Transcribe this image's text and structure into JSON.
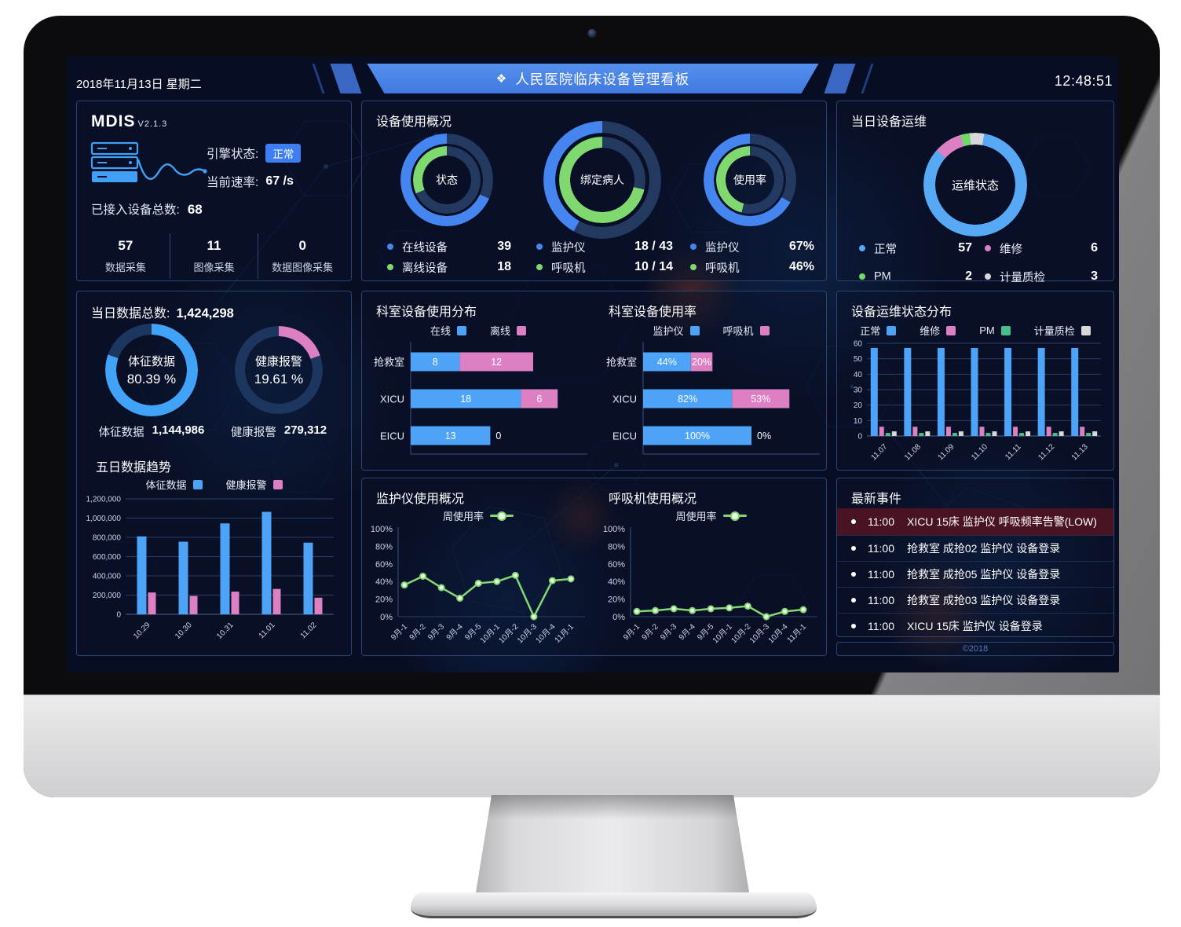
{
  "header": {
    "date": "2018年11月13日 星期二",
    "title_icon": "❖",
    "title": "人民医院临床设备管理看板",
    "time": "12:48:51"
  },
  "colors": {
    "accent_blue": "#4A86E8",
    "bar_blue": "#4DA3F7",
    "donut_blue": "#4585F0",
    "green": "#7FD96E",
    "pink": "#DC7FC3",
    "teal_pm": "#45C08C",
    "white_seg": "#D8D8D8",
    "light_blue": "#41A3F7",
    "ring_rest": "#24395F",
    "navy_rest": "#1D3660",
    "alert_bg": "#4A1322",
    "badge_blue": "#3D7EF2"
  },
  "mdis": {
    "title": "MDIS",
    "version": "V2.1.3",
    "engine_label": "引擎状态:",
    "engine_status": "正常",
    "rate_label": "当前速率:",
    "rate_value": "67 /s",
    "total_label": "已接入设备总数:",
    "total_value": "68",
    "stats": [
      {
        "value": "57",
        "label": "数据采集"
      },
      {
        "value": "11",
        "label": "图像采集"
      },
      {
        "value": "0",
        "label": "数据图像采集"
      }
    ]
  },
  "device_usage": {
    "title": "设备使用概况",
    "groups": [
      {
        "center": "状态",
        "legend": [
          {
            "label": "在线设备",
            "value": "39",
            "color": "#4585F0"
          },
          {
            "label": "离线设备",
            "value": "18",
            "color": "#7FD96E"
          }
        ]
      },
      {
        "center": "绑定病人",
        "legend": [
          {
            "label": "监护仪",
            "value": "18 / 43",
            "color": "#4585F0"
          },
          {
            "label": "呼吸机",
            "value": "10 / 14",
            "color": "#7FD96E"
          }
        ]
      },
      {
        "center": "使用率",
        "legend": [
          {
            "label": "监护仪",
            "value": "67%",
            "color": "#4585F0"
          },
          {
            "label": "呼吸机",
            "value": "46%",
            "color": "#7FD96E"
          }
        ]
      }
    ]
  },
  "daily_maintenance": {
    "title": "当日设备运维",
    "center": "运维状态",
    "legend": [
      {
        "label": "正常",
        "value": "57",
        "color": "#57A8F5"
      },
      {
        "label": "维修",
        "value": "6",
        "color": "#DC7FC3"
      },
      {
        "label": "PM",
        "value": "2",
        "color": "#6FD96A"
      },
      {
        "label": "计量质检",
        "value": "3",
        "color": "#D8D8D8"
      }
    ]
  },
  "daily_data": {
    "title": "当日数据总数:",
    "total": "1,424,298",
    "donuts": [
      {
        "center_line1": "体征数据",
        "center_line2": "80.39 %",
        "label": "体征数据",
        "value": "1,144,986"
      },
      {
        "center_line1": "健康报警",
        "center_line2": "19.61 %",
        "label": "健康报警",
        "value": "279,312"
      }
    ]
  },
  "donuts": {
    "usage1_outer": {
      "size": 118,
      "ring": 13,
      "dir": "ccw",
      "pct": 68.4,
      "color": "#4585F0",
      "rest": "#24395F"
    },
    "usage1_inner": {
      "size": 86,
      "ring": 12,
      "dir": "ccw",
      "pct": 31.6,
      "color": "#7FD96E",
      "rest": "#24395F"
    },
    "usage2_outer": {
      "size": 150,
      "ring": 15,
      "dir": "ccw",
      "pct": 41.9,
      "color": "#4585F0",
      "rest": "#24395F"
    },
    "usage2_inner": {
      "size": 110,
      "ring": 14,
      "dir": "ccw",
      "pct": 71.4,
      "color": "#7FD96E",
      "rest": "#24395F"
    },
    "usage3_outer": {
      "size": 118,
      "ring": 13,
      "dir": "ccw",
      "pct": 67,
      "color": "#4585F0",
      "rest": "#24395F"
    },
    "usage3_inner": {
      "size": 86,
      "ring": 12,
      "dir": "ccw",
      "pct": 46,
      "color": "#7FD96E",
      "rest": "#24395F"
    },
    "maintenance": {
      "size": 132,
      "ring": 15,
      "dir": "cw",
      "from": 10,
      "segs": [
        [
          "#57A8F5",
          83.8
        ],
        [
          "#DC7FC3",
          8.8
        ],
        [
          "#6FD96A",
          2.9
        ],
        [
          "#D8D8D8",
          4.5
        ]
      ]
    },
    "vital": {
      "size": 118,
      "ring": 14,
      "dir": "cw",
      "pct": 80.39,
      "color": "#41A3F7",
      "rest": "#1D3660"
    },
    "alarm": {
      "size": 112,
      "ring": 13,
      "dir": "cw",
      "pct": 19.61,
      "color": "#DC7FC3",
      "rest": "#1D3660"
    }
  },
  "chart_data": {
    "five_day_trend": {
      "type": "bar",
      "title": "五日数据趋势",
      "categories": [
        "10.29",
        "10.30",
        "10.31",
        "11.01",
        "11.02"
      ],
      "series": [
        {
          "name": "体征数据",
          "color": "#4DA3F7",
          "values": [
            810000,
            755000,
            945000,
            1065000,
            745000
          ]
        },
        {
          "name": "健康报警",
          "color": "#DC7FC3",
          "values": [
            227000,
            191000,
            236000,
            264000,
            173000
          ]
        }
      ],
      "ylim": [
        0,
        1200000
      ],
      "y_ticks": [
        "0",
        "200,000",
        "400,000",
        "600,000",
        "800,000",
        "1,000,000",
        "1,200,000"
      ],
      "grid": true,
      "legend_position": "top"
    },
    "dept_usage_distribution": {
      "type": "hbar-stacked",
      "title": "科室设备使用分布",
      "categories": [
        "抢救室",
        "XICU",
        "EICU"
      ],
      "series": [
        {
          "name": "在线",
          "color": "#4DA3F7",
          "values": [
            8,
            18,
            13
          ]
        },
        {
          "name": "离线",
          "color": "#DC7FC3",
          "values": [
            12,
            6,
            0
          ]
        }
      ],
      "value_suffix": ""
    },
    "dept_usage_rate": {
      "type": "hbar-stacked",
      "title": "科室设备使用率",
      "categories": [
        "抢救室",
        "XICU",
        "EICU"
      ],
      "series": [
        {
          "name": "监护仪",
          "color": "#4DA3F7",
          "values": [
            44,
            82,
            100
          ]
        },
        {
          "name": "呼吸机",
          "color": "#DC7FC3",
          "values": [
            20,
            53,
            0
          ]
        }
      ],
      "value_suffix": "%"
    },
    "maintenance_distribution": {
      "type": "bar",
      "title": "设备运维状态分布",
      "categories": [
        "11.07",
        "11.08",
        "11.09",
        "11.10",
        "11.11",
        "11.12",
        "11.13"
      ],
      "series": [
        {
          "name": "正常",
          "color": "#4DA3F7",
          "values": [
            57,
            57,
            57,
            57,
            57,
            57,
            57
          ]
        },
        {
          "name": "维修",
          "color": "#DC7FC3",
          "values": [
            6,
            6,
            6,
            6,
            6,
            6,
            6
          ]
        },
        {
          "name": "PM",
          "color": "#45C08C",
          "values": [
            2,
            2,
            2,
            2,
            2,
            2,
            2
          ]
        },
        {
          "name": "计量质检",
          "color": "#D8D8D8",
          "values": [
            3,
            3,
            3,
            3,
            3,
            3,
            3
          ]
        }
      ],
      "ylim": [
        0,
        60
      ],
      "y_ticks": [
        "0",
        "10",
        "20",
        "30",
        "40",
        "50",
        "60"
      ],
      "grid": true,
      "legend_position": "top"
    },
    "monitor_usage": {
      "type": "line",
      "title": "监护仪使用概况",
      "legend": "周使用率",
      "color": "#82D872",
      "categories": [
        "9月-1",
        "9月-2",
        "9月-3",
        "9月-4",
        "9月-5",
        "10月-1",
        "10月-2",
        "10月-3",
        "10月-4",
        "11月-1"
      ],
      "values": [
        36,
        46,
        33,
        21,
        38,
        40,
        47,
        0,
        41,
        43
      ],
      "ylim": [
        0,
        100
      ],
      "y_ticks": [
        "0%",
        "20%",
        "40%",
        "60%",
        "80%",
        "100%"
      ]
    },
    "ventilator_usage": {
      "type": "line",
      "title": "呼吸机使用概况",
      "legend": "周使用率",
      "color": "#82D872",
      "categories": [
        "9月-1",
        "9月-2",
        "9月-3",
        "9月-4",
        "9月-5",
        "10月-1",
        "10月-2",
        "10月-3",
        "10月-4",
        "11月-1"
      ],
      "values": [
        6,
        7,
        9,
        7,
        9,
        10,
        12,
        0,
        6,
        8
      ],
      "ylim": [
        0,
        100
      ],
      "y_ticks": [
        "0%",
        "20%",
        "40%",
        "60%",
        "80%",
        "100%"
      ]
    }
  },
  "events": {
    "title": "最新事件",
    "items": [
      {
        "time": "11:00",
        "text": "XICU 15床 监护仪 呼吸频率告警(LOW)",
        "alert": true
      },
      {
        "time": "11:00",
        "text": "抢救室 成抢02 监护仪 设备登录",
        "alert": false
      },
      {
        "time": "11:00",
        "text": "抢救室 成抢05 监护仪 设备登录",
        "alert": false
      },
      {
        "time": "11:00",
        "text": "抢救室 成抢03 监护仪 设备登录",
        "alert": false
      },
      {
        "time": "11:00",
        "text": "XICU 15床 监护仪 设备登录",
        "alert": false
      }
    ],
    "footer": "©2018"
  }
}
